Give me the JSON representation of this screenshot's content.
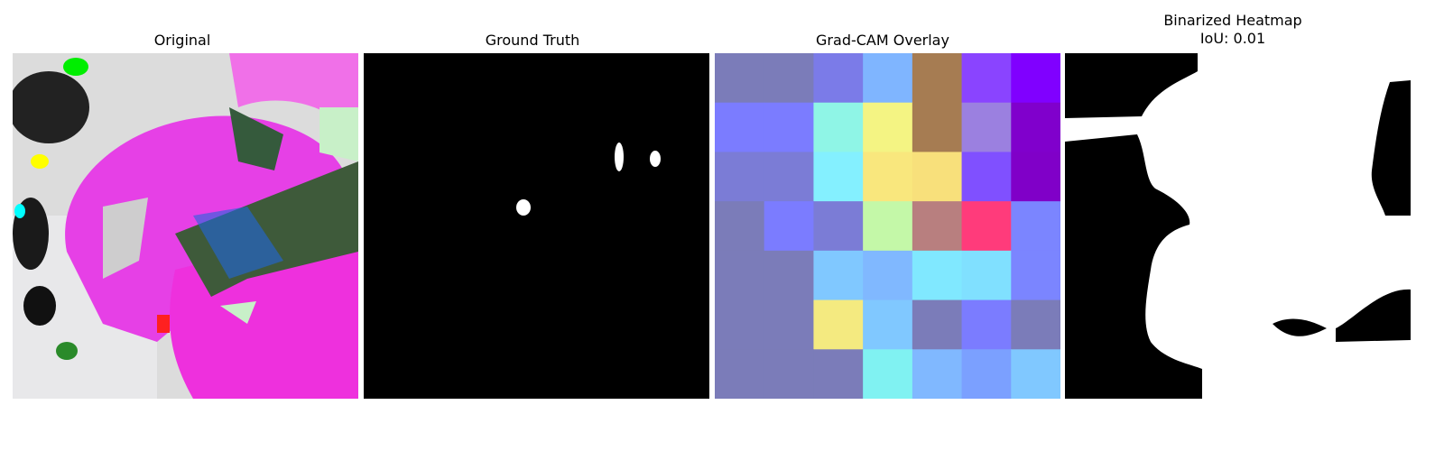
{
  "panels": [
    {
      "title": "Original",
      "image": "leaf-photo-false-color"
    },
    {
      "title": "Ground Truth",
      "image": "binary-mask"
    },
    {
      "title": "Grad-CAM Overlay",
      "image": "heatmap-grid-7x7"
    },
    {
      "title_line1": "Binarized Heatmap",
      "title_line2": "IoU: 0.01",
      "image": "binarized-heatmap-mask"
    }
  ],
  "gradcam_grid": [
    [
      "#7b7cb9",
      "#7b7cb9",
      "#7b7be8",
      "#7fb5ff",
      "#a67c52",
      "#8a44ff",
      "#8000ff"
    ],
    [
      "#7b7cff",
      "#7b7cff",
      "#8ff5e6",
      "#f4f483",
      "#a67c52",
      "#9b80e0",
      "#8000cc"
    ],
    [
      "#7b7cd6",
      "#7b7cd6",
      "#84f0ff",
      "#f9e77d",
      "#f8e07b",
      "#8050ff",
      "#8000c8"
    ],
    [
      "#7b7cb9",
      "#7b7cff",
      "#7b7cd6",
      "#c4f8a8",
      "#b87f7f",
      "#ff3b7b",
      "#7b85ff"
    ],
    [
      "#7b7cb9",
      "#7b7cb9",
      "#80c8ff",
      "#80b8ff",
      "#80e8ff",
      "#80e0ff",
      "#7b85ff"
    ],
    [
      "#7b7cb9",
      "#7b7cb9",
      "#f4ea80",
      "#80c8ff",
      "#7b7cb9",
      "#7b7cff",
      "#7b7cb9"
    ],
    [
      "#7b7cb9",
      "#7b7cb9",
      "#7b7cb9",
      "#80f2f2",
      "#80b8ff",
      "#7ba0ff",
      "#80c8ff"
    ]
  ],
  "colors": {
    "background": "#ffffff",
    "mask_fg": "#ffffff",
    "mask_bg": "#000000",
    "leaf_magenta": "#e640e6",
    "leaf_dark": "#3e5a3a"
  }
}
